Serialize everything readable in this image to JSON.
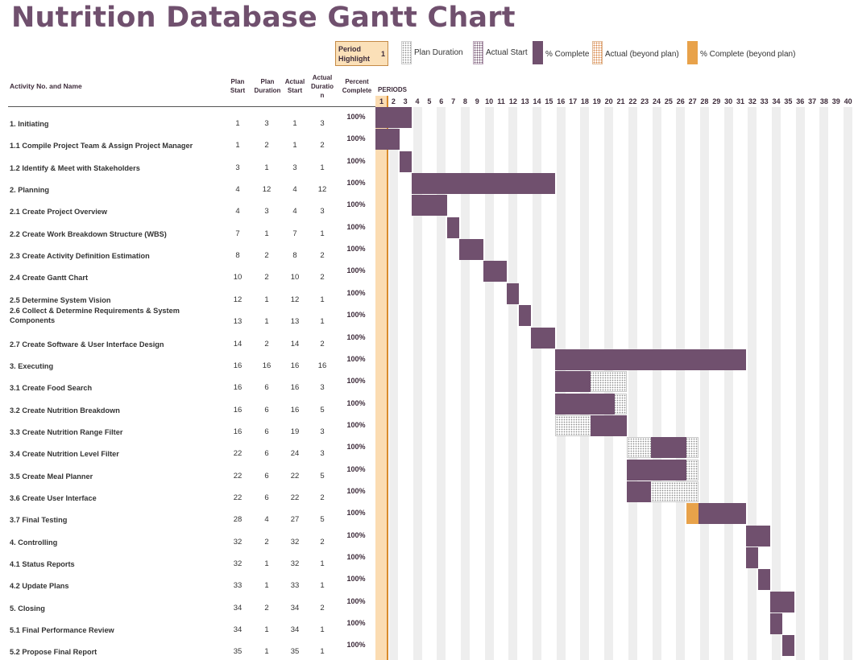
{
  "title": "Nutrition Database Gantt Chart",
  "legend": {
    "period_highlight_label": "Period Highlight",
    "period_highlight_value": "1",
    "plan_duration": "Plan Duration",
    "actual_start": "Actual Start",
    "percent_complete": "% Complete",
    "actual_beyond": "Actual (beyond plan)",
    "percent_complete_beyond": "% Complete (beyond plan)"
  },
  "headers": {
    "activity": "Activity No. and Name",
    "plan_start": "Plan Start",
    "plan_duration": "Plan Duration",
    "actual_start": "Actual Start",
    "actual_duration": "Actual Duration",
    "percent_complete": "Percent Complete",
    "periods": "PERIODS"
  },
  "colors": {
    "title": "#70506e",
    "actual_bar": "#70506e",
    "beyond_bar": "#e8a24a",
    "highlight": "#fbdcb2",
    "highlight_line": "#d98a2a"
  },
  "chart_data": {
    "type": "gantt",
    "title": "Nutrition Database Gantt Chart",
    "periods": [
      1,
      2,
      3,
      4,
      5,
      6,
      7,
      8,
      9,
      10,
      11,
      12,
      13,
      14,
      15,
      16,
      17,
      18,
      19,
      20,
      21,
      22,
      23,
      24,
      25,
      26,
      27,
      28,
      29,
      30,
      31,
      32,
      33,
      34,
      35,
      36,
      37,
      38,
      39,
      40
    ],
    "highlight_period": 1,
    "activities": [
      {
        "name": "1. Initiating",
        "plan_start": 1,
        "plan_duration": 3,
        "actual_start": 1,
        "actual_duration": 3,
        "percent": "100%"
      },
      {
        "name": "1.1 Compile Project Team & Assign Project Manager",
        "plan_start": 1,
        "plan_duration": 2,
        "actual_start": 1,
        "actual_duration": 2,
        "percent": "100%"
      },
      {
        "name": "1.2 Identify & Meet with Stakeholders",
        "plan_start": 3,
        "plan_duration": 1,
        "actual_start": 3,
        "actual_duration": 1,
        "percent": "100%"
      },
      {
        "name": "2. Planning",
        "plan_start": 4,
        "plan_duration": 12,
        "actual_start": 4,
        "actual_duration": 12,
        "percent": "100%"
      },
      {
        "name": "2.1 Create Project Overview",
        "plan_start": 4,
        "plan_duration": 3,
        "actual_start": 4,
        "actual_duration": 3,
        "percent": "100%"
      },
      {
        "name": "2.2 Create Work Breakdown Structure (WBS)",
        "plan_start": 7,
        "plan_duration": 1,
        "actual_start": 7,
        "actual_duration": 1,
        "percent": "100%"
      },
      {
        "name": "2.3 Create Activity Definition Estimation",
        "plan_start": 8,
        "plan_duration": 2,
        "actual_start": 8,
        "actual_duration": 2,
        "percent": "100%"
      },
      {
        "name": "2.4 Create Gantt Chart",
        "plan_start": 10,
        "plan_duration": 2,
        "actual_start": 10,
        "actual_duration": 2,
        "percent": "100%"
      },
      {
        "name": "2.5 Determine System Vision",
        "plan_start": 12,
        "plan_duration": 1,
        "actual_start": 12,
        "actual_duration": 1,
        "percent": "100%"
      },
      {
        "name": "2.6 Collect & Determine Requirements & System Components",
        "plan_start": 13,
        "plan_duration": 1,
        "actual_start": 13,
        "actual_duration": 1,
        "percent": "100%"
      },
      {
        "name": "2.7 Create Software & User Interface Design",
        "plan_start": 14,
        "plan_duration": 2,
        "actual_start": 14,
        "actual_duration": 2,
        "percent": "100%"
      },
      {
        "name": "3. Executing",
        "plan_start": 16,
        "plan_duration": 16,
        "actual_start": 16,
        "actual_duration": 16,
        "percent": "100%"
      },
      {
        "name": "3.1 Create Food Search",
        "plan_start": 16,
        "plan_duration": 6,
        "actual_start": 16,
        "actual_duration": 3,
        "percent": "100%"
      },
      {
        "name": "3.2 Create Nutrition Breakdown",
        "plan_start": 16,
        "plan_duration": 6,
        "actual_start": 16,
        "actual_duration": 5,
        "percent": "100%"
      },
      {
        "name": "3.3 Create Nutrition Range Filter",
        "plan_start": 16,
        "plan_duration": 6,
        "actual_start": 19,
        "actual_duration": 3,
        "percent": "100%"
      },
      {
        "name": "3.4 Create Nutrition Level Filter",
        "plan_start": 22,
        "plan_duration": 6,
        "actual_start": 24,
        "actual_duration": 3,
        "percent": "100%"
      },
      {
        "name": "3.5 Create Meal Planner",
        "plan_start": 22,
        "plan_duration": 6,
        "actual_start": 22,
        "actual_duration": 5,
        "percent": "100%"
      },
      {
        "name": "3.6 Create User Interface",
        "plan_start": 22,
        "plan_duration": 6,
        "actual_start": 22,
        "actual_duration": 2,
        "percent": "100%"
      },
      {
        "name": "3.7 Final Testing",
        "plan_start": 28,
        "plan_duration": 4,
        "actual_start": 27,
        "actual_duration": 5,
        "percent": "100%"
      },
      {
        "name": "4. Controlling",
        "plan_start": 32,
        "plan_duration": 2,
        "actual_start": 32,
        "actual_duration": 2,
        "percent": "100%"
      },
      {
        "name": "4.1 Status Reports",
        "plan_start": 32,
        "plan_duration": 1,
        "actual_start": 32,
        "actual_duration": 1,
        "percent": "100%"
      },
      {
        "name": "4.2 Update Plans",
        "plan_start": 33,
        "plan_duration": 1,
        "actual_start": 33,
        "actual_duration": 1,
        "percent": "100%"
      },
      {
        "name": "5. Closing",
        "plan_start": 34,
        "plan_duration": 2,
        "actual_start": 34,
        "actual_duration": 2,
        "percent": "100%"
      },
      {
        "name": "5.1 Final Performance Review",
        "plan_start": 34,
        "plan_duration": 1,
        "actual_start": 34,
        "actual_duration": 1,
        "percent": "100%"
      },
      {
        "name": "5.2 Propose Final Report",
        "plan_start": 35,
        "plan_duration": 1,
        "actual_start": 35,
        "actual_duration": 1,
        "percent": "100%"
      }
    ]
  }
}
